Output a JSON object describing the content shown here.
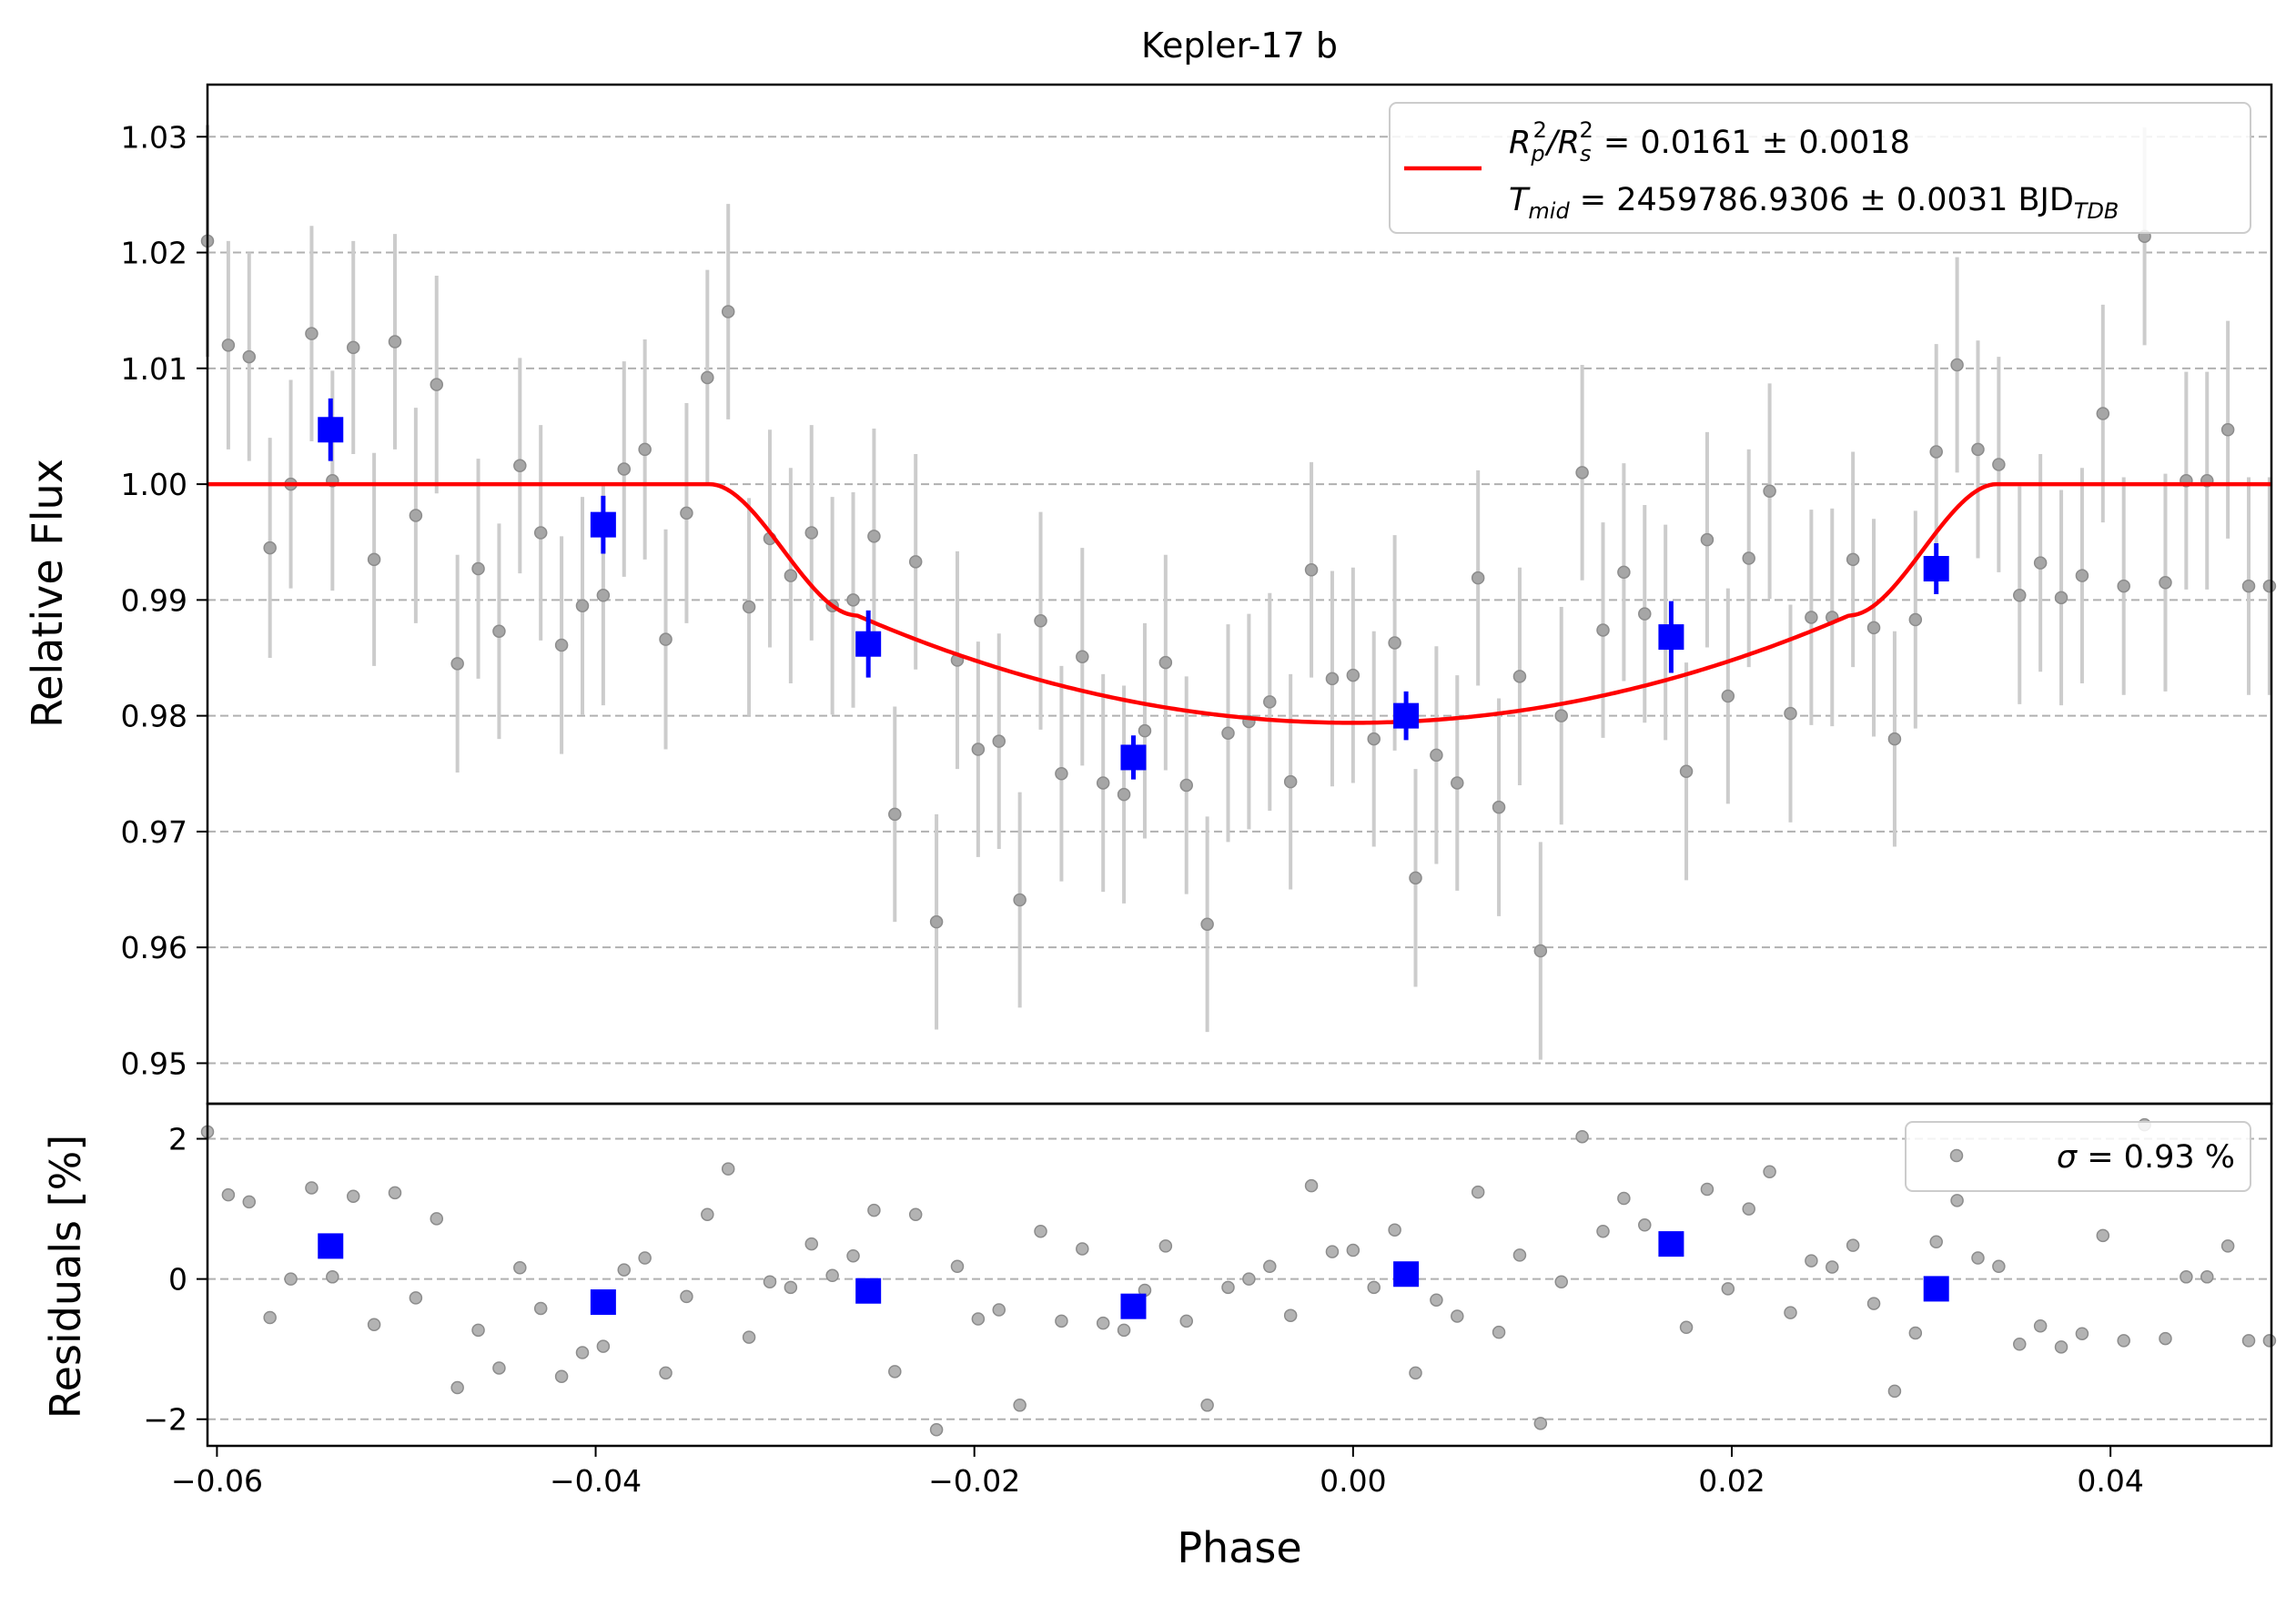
{
  "chart_data": [
    {
      "type": "scatter",
      "title": "Kepler-17 b",
      "xlabel": "",
      "ylabel": "Relative Flux",
      "xlim": [
        -0.0605,
        0.0485
      ],
      "ylim": [
        0.9465,
        1.0345
      ],
      "yticks": [
        "0.95",
        "0.96",
        "0.97",
        "0.98",
        "0.99",
        "1.00",
        "1.01",
        "1.02",
        "1.03"
      ],
      "grid": "horizontal-dashed",
      "legend_position": "top-right",
      "legend": {
        "line1": {
          "pre": "R",
          "sub1": "p",
          "sup1": "2",
          "mid": "/R",
          "sub2": "s",
          "sup2": "2",
          "post": " = 0.0161 ± 0.0018"
        },
        "line2": {
          "pre": "T",
          "sub1": "mid",
          "mid": " = 2459786.9306 ± 0.0031 BJD",
          "sub2": "TDB"
        }
      },
      "colors": {
        "raw": "#999999",
        "errorbar": "#cccccc",
        "binned": "#0000ff",
        "model": "#ff0000",
        "grid": "#b0b0b0"
      },
      "series": [
        {
          "kind": "raw",
          "points": [
            [
              -0.0605,
              1.021,
              0.01
            ],
            [
              -0.0594,
              1.012,
              0.009
            ],
            [
              -0.0583,
              1.011,
              0.009
            ],
            [
              -0.0572,
              0.9945,
              0.0095
            ],
            [
              -0.0561,
              1.0,
              0.009
            ],
            [
              -0.055,
              1.013,
              0.0093
            ],
            [
              -0.0539,
              1.0003,
              0.0095
            ],
            [
              -0.0528,
              1.0118,
              0.0092
            ],
            [
              -0.0517,
              0.9935,
              0.0092
            ],
            [
              -0.0506,
              1.0123,
              0.0093
            ],
            [
              -0.0495,
              0.9973,
              0.0093
            ],
            [
              -0.0484,
              1.0086,
              0.0094
            ],
            [
              -0.0473,
              0.9845,
              0.0094
            ],
            [
              -0.0462,
              0.9927,
              0.0095
            ],
            [
              -0.0451,
              0.9873,
              0.0093
            ],
            [
              -0.044,
              1.0016,
              0.0093
            ],
            [
              -0.0429,
              0.9958,
              0.0093
            ],
            [
              -0.0418,
              0.9861,
              0.0094
            ],
            [
              -0.0407,
              0.9895,
              0.0094
            ],
            [
              -0.0396,
              0.9904,
              0.0095
            ],
            [
              -0.0385,
              1.0013,
              0.0093
            ],
            [
              -0.0374,
              1.003,
              0.0095
            ],
            [
              -0.0363,
              0.9866,
              0.0095
            ],
            [
              -0.0352,
              0.9975,
              0.0095
            ],
            [
              -0.0341,
              1.0092,
              0.0093
            ],
            [
              -0.033,
              1.0149,
              0.0093
            ],
            [
              -0.0319,
              0.9894,
              0.0094
            ],
            [
              -0.0308,
              0.9953,
              0.0094
            ],
            [
              -0.0297,
              0.9921,
              0.0093
            ],
            [
              -0.0286,
              0.9958,
              0.0093
            ],
            [
              -0.0275,
              0.9895,
              0.0094
            ],
            [
              -0.0264,
              0.99,
              0.0093
            ],
            [
              -0.0253,
              0.9955,
              0.0093
            ],
            [
              -0.0242,
              0.9715,
              0.0093
            ],
            [
              -0.0231,
              0.9933,
              0.0093
            ],
            [
              -0.022,
              0.9622,
              0.0093
            ],
            [
              -0.0209,
              0.9848,
              0.0094
            ],
            [
              -0.0198,
              0.9771,
              0.0093
            ],
            [
              -0.0187,
              0.9778,
              0.0093
            ],
            [
              -0.0176,
              0.9641,
              0.0093
            ],
            [
              -0.0165,
              0.9882,
              0.0094
            ],
            [
              -0.0154,
              0.975,
              0.0093
            ],
            [
              -0.0143,
              0.9851,
              0.0094
            ],
            [
              -0.0132,
              0.9742,
              0.0094
            ],
            [
              -0.0121,
              0.9732,
              0.0094
            ],
            [
              -0.011,
              0.9787,
              0.0093
            ],
            [
              -0.0099,
              0.9846,
              0.0093
            ],
            [
              -0.0088,
              0.974,
              0.0094
            ],
            [
              -0.0077,
              0.962,
              0.0093
            ],
            [
              -0.0066,
              0.9785,
              0.0094
            ],
            [
              -0.0055,
              0.9795,
              0.0093
            ],
            [
              -0.0044,
              0.9812,
              0.0094
            ],
            [
              -0.0033,
              0.9743,
              0.0093
            ],
            [
              -0.0022,
              0.9926,
              0.0093
            ],
            [
              -0.0011,
              0.9832,
              0.0093
            ],
            [
              0.0,
              0.9835,
              0.0093
            ],
            [
              0.0011,
              0.978,
              0.0093
            ],
            [
              0.0022,
              0.9863,
              0.0093
            ],
            [
              0.0033,
              0.966,
              0.0094
            ],
            [
              0.0044,
              0.9766,
              0.0094
            ],
            [
              0.0055,
              0.9742,
              0.0093
            ],
            [
              0.0066,
              0.9919,
              0.0093
            ],
            [
              0.0077,
              0.9721,
              0.0094
            ],
            [
              0.0088,
              0.9834,
              0.0094
            ],
            [
              0.0099,
              0.9597,
              0.0094
            ],
            [
              0.011,
              0.98,
              0.0094
            ],
            [
              0.0121,
              1.001,
              0.0093
            ],
            [
              0.0132,
              0.9874,
              0.0093
            ],
            [
              0.0143,
              0.9924,
              0.0094
            ],
            [
              0.0154,
              0.9888,
              0.0094
            ],
            [
              0.0165,
              0.9872,
              0.0093
            ],
            [
              0.0176,
              0.9752,
              0.0094
            ],
            [
              0.0187,
              0.9952,
              0.0093
            ],
            [
              0.0198,
              0.9817,
              0.0093
            ],
            [
              0.0209,
              0.9936,
              0.0094
            ],
            [
              0.022,
              0.9994,
              0.0093
            ],
            [
              0.0231,
              0.9802,
              0.0094
            ],
            [
              0.0242,
              0.9885,
              0.0093
            ],
            [
              0.0253,
              0.9885,
              0.0094
            ],
            [
              0.0264,
              0.9935,
              0.0093
            ],
            [
              0.0275,
              0.9876,
              0.0094
            ],
            [
              0.0286,
              0.978,
              0.0093
            ],
            [
              0.0297,
              0.9883,
              0.0094
            ],
            [
              0.0308,
              1.0028,
              0.0093
            ],
            [
              0.0319,
              1.0103,
              0.0093
            ],
            [
              0.033,
              1.003,
              0.0094
            ],
            [
              0.0341,
              1.0017,
              0.0093
            ],
            [
              0.0352,
              0.9904,
              0.0094
            ],
            [
              0.0363,
              0.9932,
              0.0094
            ],
            [
              0.0374,
              0.9902,
              0.0093
            ],
            [
              0.0385,
              0.9921,
              0.0093
            ],
            [
              0.0396,
              1.0061,
              0.0094
            ],
            [
              0.0407,
              0.9912,
              0.0094
            ],
            [
              0.0418,
              1.0214,
              0.0094
            ],
            [
              0.0429,
              0.9915,
              0.0094
            ],
            [
              0.044,
              1.0003,
              0.0094
            ],
            [
              0.0451,
              1.0003,
              0.0094
            ],
            [
              0.0462,
              1.0047,
              0.0094
            ],
            [
              0.0473,
              0.9912,
              0.0094
            ],
            [
              0.0484,
              0.9912,
              0.0094
            ]
          ]
        },
        {
          "kind": "binned",
          "points": [
            [
              -0.054,
              1.0047,
              0.0027
            ],
            [
              -0.0396,
              0.9965,
              0.0025
            ],
            [
              -0.0256,
              0.9862,
              0.0029
            ],
            [
              -0.0116,
              0.9764,
              0.0019
            ],
            [
              0.0028,
              0.98,
              0.0021
            ],
            [
              0.0168,
              0.9868,
              0.0031
            ],
            [
              0.0308,
              0.9927,
              0.0022
            ]
          ]
        },
        {
          "kind": "model",
          "tmid": 0.0,
          "rp_rs_sq": 0.0161,
          "t14_half": 0.034,
          "t_ingress": 0.0078
        }
      ]
    },
    {
      "type": "scatter",
      "xlabel": "Phase",
      "ylabel": "Residuals [%]",
      "xlim": [
        -0.0605,
        0.0485
      ],
      "ylim": [
        -2.38,
        2.5
      ],
      "yticks": [
        "−2",
        "0",
        "2"
      ],
      "xticks": [
        "−0.06",
        "−0.04",
        "−0.02",
        "0.00",
        "0.02",
        "0.04"
      ],
      "xtick_values": [
        -0.06,
        -0.04,
        -0.02,
        0.0,
        0.02,
        0.04
      ],
      "ytick_values": [
        -2,
        0,
        2
      ],
      "grid": "horizontal-dashed",
      "legend_position": "top-right",
      "legend": {
        "sigma": "σ",
        "text": " = 0.93 %"
      },
      "series": [
        {
          "kind": "raw",
          "points": [
            [
              -0.0605,
              2.1
            ],
            [
              -0.0594,
              1.2
            ],
            [
              -0.0583,
              1.1
            ],
            [
              -0.0572,
              -0.55
            ],
            [
              -0.0561,
              0.0
            ],
            [
              -0.055,
              1.3
            ],
            [
              -0.0539,
              0.03
            ],
            [
              -0.0528,
              1.18
            ],
            [
              -0.0517,
              -0.65
            ],
            [
              -0.0506,
              1.23
            ],
            [
              -0.0495,
              -0.27
            ],
            [
              -0.0484,
              0.86
            ],
            [
              -0.0473,
              -1.55
            ],
            [
              -0.0462,
              -0.73
            ],
            [
              -0.0451,
              -1.27
            ],
            [
              -0.044,
              0.16
            ],
            [
              -0.0429,
              -0.42
            ],
            [
              -0.0418,
              -1.39
            ],
            [
              -0.0407,
              -1.05
            ],
            [
              -0.0396,
              -0.96
            ],
            [
              -0.0385,
              0.13
            ],
            [
              -0.0374,
              0.3
            ],
            [
              -0.0363,
              -1.34
            ],
            [
              -0.0352,
              -0.25
            ],
            [
              -0.0341,
              0.92
            ],
            [
              -0.033,
              1.57
            ],
            [
              -0.0319,
              -0.83
            ],
            [
              -0.0308,
              -0.04
            ],
            [
              -0.0297,
              -0.12
            ],
            [
              -0.0286,
              0.5
            ],
            [
              -0.0275,
              0.05
            ],
            [
              -0.0264,
              0.33
            ],
            [
              -0.0253,
              0.98
            ],
            [
              -0.0242,
              -1.32
            ],
            [
              -0.0231,
              0.92
            ],
            [
              -0.022,
              -2.15
            ],
            [
              -0.0209,
              0.18
            ],
            [
              -0.0198,
              -0.57
            ],
            [
              -0.0187,
              -0.44
            ],
            [
              -0.0176,
              -1.8
            ],
            [
              -0.0165,
              0.68
            ],
            [
              -0.0154,
              -0.6
            ],
            [
              -0.0143,
              0.43
            ],
            [
              -0.0132,
              -0.63
            ],
            [
              -0.0121,
              -0.73
            ],
            [
              -0.011,
              -0.16
            ],
            [
              -0.0099,
              0.47
            ],
            [
              -0.0088,
              -0.6
            ],
            [
              -0.0077,
              -1.8
            ],
            [
              -0.0066,
              -0.12
            ],
            [
              -0.0055,
              0.0
            ],
            [
              -0.0044,
              0.18
            ],
            [
              -0.0033,
              -0.52
            ],
            [
              -0.0022,
              1.33
            ],
            [
              -0.0011,
              0.39
            ],
            [
              0.0,
              0.41
            ],
            [
              0.0011,
              -0.12
            ],
            [
              0.0022,
              0.7
            ],
            [
              0.0033,
              -1.34
            ],
            [
              0.0044,
              -0.3
            ],
            [
              0.0055,
              -0.53
            ],
            [
              0.0066,
              1.24
            ],
            [
              0.0077,
              -0.76
            ],
            [
              0.0088,
              0.34
            ],
            [
              0.0099,
              -2.06
            ],
            [
              0.011,
              -0.04
            ],
            [
              0.0121,
              2.03
            ],
            [
              0.0132,
              0.68
            ],
            [
              0.0143,
              1.15
            ],
            [
              0.0154,
              0.77
            ],
            [
              0.0165,
              0.57
            ],
            [
              0.0176,
              -0.69
            ],
            [
              0.0187,
              1.28
            ],
            [
              0.0198,
              -0.14
            ],
            [
              0.0209,
              1.0
            ],
            [
              0.022,
              1.53
            ],
            [
              0.0231,
              -0.48
            ],
            [
              0.0242,
              0.26
            ],
            [
              0.0253,
              0.17
            ],
            [
              0.0264,
              0.48
            ],
            [
              0.0275,
              -0.35
            ],
            [
              0.0286,
              -1.6
            ],
            [
              0.0297,
              -0.77
            ],
            [
              0.0308,
              0.53
            ],
            [
              0.0319,
              1.12
            ],
            [
              0.033,
              0.3
            ],
            [
              0.0341,
              0.18
            ],
            [
              0.0352,
              -0.93
            ],
            [
              0.0363,
              -0.67
            ],
            [
              0.0374,
              -0.97
            ],
            [
              0.0385,
              -0.78
            ],
            [
              0.0396,
              0.62
            ],
            [
              0.0407,
              -0.88
            ],
            [
              0.0418,
              2.2
            ],
            [
              0.0429,
              -0.85
            ],
            [
              0.044,
              0.03
            ],
            [
              0.0451,
              0.03
            ],
            [
              0.0462,
              0.47
            ],
            [
              0.0473,
              -0.88
            ],
            [
              0.0484,
              -0.88
            ]
          ]
        },
        {
          "kind": "binned",
          "points": [
            [
              -0.054,
              0.47
            ],
            [
              -0.0396,
              -0.33
            ],
            [
              -0.0256,
              -0.17
            ],
            [
              -0.0116,
              -0.39
            ],
            [
              0.0028,
              0.07
            ],
            [
              0.0168,
              0.5
            ],
            [
              0.0308,
              -0.14
            ]
          ]
        }
      ]
    }
  ]
}
